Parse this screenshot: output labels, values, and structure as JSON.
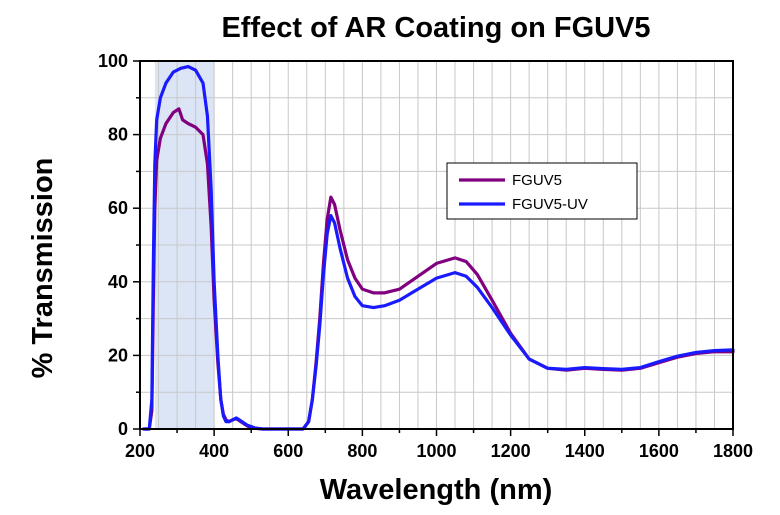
{
  "chart_data": {
    "type": "line",
    "title": "Effect of AR Coating on FGUV5",
    "xlabel": "Wavelength (nm)",
    "ylabel": "% Transmission",
    "xlim": [
      200,
      1800
    ],
    "ylim": [
      0,
      100
    ],
    "x_ticks": [
      200,
      400,
      600,
      800,
      1000,
      1200,
      1400,
      1600,
      1800
    ],
    "y_ticks": [
      0,
      20,
      40,
      60,
      80,
      100
    ],
    "grid": true,
    "legend_position": "center-right",
    "highlight_band": {
      "x_range": [
        240,
        400
      ],
      "color": "#dbe5f5"
    },
    "series": [
      {
        "name": "FGUV5",
        "color": "#800080",
        "points": [
          [
            210,
            0
          ],
          [
            225,
            0
          ],
          [
            232,
            5
          ],
          [
            236,
            35
          ],
          [
            240,
            60
          ],
          [
            245,
            73
          ],
          [
            255,
            79
          ],
          [
            270,
            83
          ],
          [
            290,
            86
          ],
          [
            305,
            87
          ],
          [
            315,
            84
          ],
          [
            330,
            83
          ],
          [
            350,
            82
          ],
          [
            370,
            80
          ],
          [
            382,
            72
          ],
          [
            392,
            55
          ],
          [
            400,
            35
          ],
          [
            410,
            18
          ],
          [
            418,
            8
          ],
          [
            425,
            4
          ],
          [
            432,
            2.5
          ],
          [
            440,
            2
          ],
          [
            450,
            2.5
          ],
          [
            460,
            2.8
          ],
          [
            475,
            1.8
          ],
          [
            490,
            0.8
          ],
          [
            510,
            0.2
          ],
          [
            530,
            0
          ],
          [
            640,
            0
          ],
          [
            655,
            2
          ],
          [
            665,
            8
          ],
          [
            675,
            18
          ],
          [
            685,
            30
          ],
          [
            695,
            45
          ],
          [
            705,
            57
          ],
          [
            715,
            63
          ],
          [
            725,
            61
          ],
          [
            740,
            54
          ],
          [
            760,
            46
          ],
          [
            780,
            41
          ],
          [
            800,
            38
          ],
          [
            830,
            37
          ],
          [
            860,
            37
          ],
          [
            900,
            38
          ],
          [
            950,
            41.5
          ],
          [
            1000,
            45
          ],
          [
            1050,
            46.5
          ],
          [
            1080,
            45.5
          ],
          [
            1110,
            42
          ],
          [
            1150,
            35
          ],
          [
            1200,
            26
          ],
          [
            1250,
            19
          ],
          [
            1300,
            16.5
          ],
          [
            1350,
            16
          ],
          [
            1400,
            16.5
          ],
          [
            1450,
            16.2
          ],
          [
            1500,
            16
          ],
          [
            1550,
            16.5
          ],
          [
            1600,
            18
          ],
          [
            1650,
            19.5
          ],
          [
            1700,
            20.5
          ],
          [
            1750,
            21
          ],
          [
            1800,
            21
          ]
        ]
      },
      {
        "name": "FGUV5-UV",
        "color": "#1a1aff",
        "points": [
          [
            210,
            0
          ],
          [
            225,
            0
          ],
          [
            232,
            8
          ],
          [
            236,
            45
          ],
          [
            240,
            72
          ],
          [
            245,
            84
          ],
          [
            255,
            90
          ],
          [
            270,
            94
          ],
          [
            290,
            97
          ],
          [
            310,
            98
          ],
          [
            330,
            98.5
          ],
          [
            350,
            97.5
          ],
          [
            370,
            94
          ],
          [
            382,
            85
          ],
          [
            392,
            65
          ],
          [
            400,
            40
          ],
          [
            410,
            20
          ],
          [
            418,
            8
          ],
          [
            425,
            3.5
          ],
          [
            432,
            2
          ],
          [
            440,
            2
          ],
          [
            450,
            2.5
          ],
          [
            460,
            3
          ],
          [
            475,
            2
          ],
          [
            490,
            1
          ],
          [
            510,
            0.3
          ],
          [
            530,
            0
          ],
          [
            640,
            0
          ],
          [
            655,
            2
          ],
          [
            665,
            8
          ],
          [
            675,
            17
          ],
          [
            685,
            28
          ],
          [
            695,
            42
          ],
          [
            705,
            53
          ],
          [
            715,
            58
          ],
          [
            725,
            56
          ],
          [
            740,
            49
          ],
          [
            760,
            41
          ],
          [
            780,
            36
          ],
          [
            800,
            33.5
          ],
          [
            830,
            33
          ],
          [
            860,
            33.5
          ],
          [
            900,
            35
          ],
          [
            950,
            38
          ],
          [
            1000,
            41
          ],
          [
            1050,
            42.5
          ],
          [
            1080,
            41.5
          ],
          [
            1110,
            38.5
          ],
          [
            1150,
            33
          ],
          [
            1200,
            25.5
          ],
          [
            1250,
            19
          ],
          [
            1300,
            16.5
          ],
          [
            1350,
            16.2
          ],
          [
            1400,
            16.7
          ],
          [
            1450,
            16.4
          ],
          [
            1500,
            16.2
          ],
          [
            1550,
            16.7
          ],
          [
            1600,
            18.3
          ],
          [
            1650,
            19.8
          ],
          [
            1700,
            20.8
          ],
          [
            1750,
            21.3
          ],
          [
            1800,
            21.5
          ]
        ]
      }
    ]
  }
}
